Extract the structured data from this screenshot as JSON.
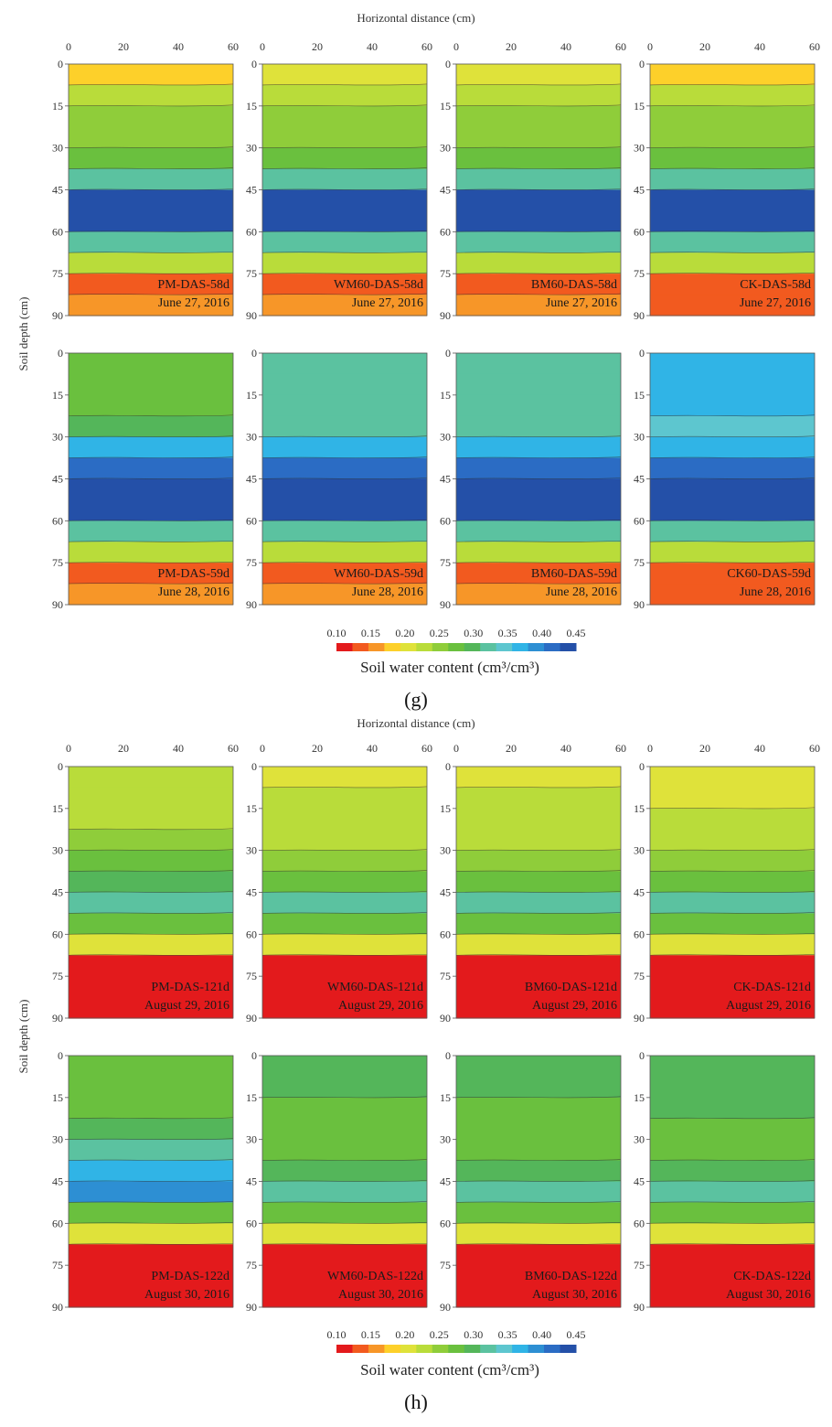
{
  "colors": {
    "scale": [
      "#e31a1c",
      "#f25a1f",
      "#f79628",
      "#fdd02a",
      "#dfe23a",
      "#b9dc3a",
      "#8fcd3a",
      "#6ac03e",
      "#54b65a",
      "#5bc2a0",
      "#5dc6cf",
      "#30b4e6",
      "#2d8fd3",
      "#2b6cc4",
      "#2450a8"
    ],
    "contour": "#2d2d2d"
  },
  "chart_data": [
    {
      "type": "heatmap",
      "id": "g",
      "subfigure_label": "(g)",
      "x_axis_title": "Horizontal distance (cm)",
      "y_axis_title": "Soil depth (cm)",
      "x_ticks": [
        "0",
        "20",
        "40",
        "60"
      ],
      "y_ticks": [
        "0",
        "15",
        "30",
        "45",
        "60",
        "75",
        "90"
      ],
      "xlim": [
        0,
        60
      ],
      "ylim": [
        0,
        90
      ],
      "panels": [
        {
          "label": "PM-DAS-58d",
          "date": "June 27, 2016",
          "profile": [
            0.19,
            0.23,
            0.25,
            0.26,
            0.27,
            0.32,
            0.43,
            0.44,
            0.33,
            0.23,
            0.13,
            0.15
          ]
        },
        {
          "label": "WM60-DAS-58d",
          "date": "June 27, 2016",
          "profile": [
            0.2,
            0.23,
            0.25,
            0.26,
            0.27,
            0.32,
            0.43,
            0.44,
            0.33,
            0.23,
            0.13,
            0.15
          ]
        },
        {
          "label": "BM60-DAS-58d",
          "date": "June 27, 2016",
          "profile": [
            0.2,
            0.23,
            0.25,
            0.26,
            0.27,
            0.32,
            0.43,
            0.44,
            0.33,
            0.23,
            0.13,
            0.15
          ]
        },
        {
          "label": "CK-DAS-58d",
          "date": "June 27, 2016",
          "profile": [
            0.19,
            0.23,
            0.25,
            0.26,
            0.27,
            0.32,
            0.43,
            0.44,
            0.33,
            0.23,
            0.13,
            0.14
          ]
        },
        {
          "label": "PM-DAS-59d",
          "date": "June 28, 2016",
          "profile": [
            0.28,
            0.28,
            0.28,
            0.3,
            0.36,
            0.41,
            0.44,
            0.45,
            0.32,
            0.22,
            0.14,
            0.15
          ]
        },
        {
          "label": "WM60-DAS-59d",
          "date": "June 28, 2016",
          "profile": [
            0.33,
            0.33,
            0.31,
            0.32,
            0.37,
            0.42,
            0.44,
            0.44,
            0.32,
            0.22,
            0.14,
            0.15
          ]
        },
        {
          "label": "BM60-DAS-59d",
          "date": "June 28, 2016",
          "profile": [
            0.33,
            0.32,
            0.31,
            0.32,
            0.37,
            0.42,
            0.44,
            0.44,
            0.32,
            0.22,
            0.14,
            0.15
          ]
        },
        {
          "label": "CK60-DAS-59d",
          "date": "June 28, 2016",
          "profile": [
            0.36,
            0.37,
            0.36,
            0.35,
            0.37,
            0.42,
            0.44,
            0.44,
            0.33,
            0.23,
            0.14,
            0.13
          ]
        }
      ],
      "colorbar": {
        "title": "Soil water content (cm³/cm³)",
        "ticks": [
          "0.10",
          "0.15",
          "0.20",
          "0.25",
          "0.30",
          "0.35",
          "0.40",
          "0.45"
        ],
        "range": [
          0.1,
          0.45
        ]
      }
    },
    {
      "type": "heatmap",
      "id": "h",
      "subfigure_label": "(h)",
      "x_axis_title": "Horizontal distance (cm)",
      "y_axis_title": "Soil depth (cm)",
      "x_ticks": [
        "0",
        "20",
        "40",
        "60"
      ],
      "y_ticks": [
        "0",
        "15",
        "30",
        "45",
        "60",
        "75",
        "90"
      ],
      "xlim": [
        0,
        60
      ],
      "ylim": [
        0,
        90
      ],
      "panels": [
        {
          "label": "PM-DAS-121d",
          "date": "August 29, 2016",
          "profile": [
            0.22,
            0.23,
            0.24,
            0.25,
            0.27,
            0.3,
            0.33,
            0.27,
            0.2,
            0.12,
            0.1,
            0.1
          ]
        },
        {
          "label": "WM60-DAS-121d",
          "date": "August 29, 2016",
          "profile": [
            0.21,
            0.22,
            0.23,
            0.24,
            0.25,
            0.27,
            0.31,
            0.27,
            0.2,
            0.12,
            0.1,
            0.1
          ]
        },
        {
          "label": "BM60-DAS-121d",
          "date": "August 29, 2016",
          "profile": [
            0.21,
            0.22,
            0.23,
            0.24,
            0.25,
            0.27,
            0.31,
            0.27,
            0.2,
            0.12,
            0.1,
            0.1
          ]
        },
        {
          "label": "CK-DAS-121d",
          "date": "August 29, 2016",
          "profile": [
            0.21,
            0.21,
            0.22,
            0.23,
            0.25,
            0.27,
            0.31,
            0.27,
            0.2,
            0.12,
            0.1,
            0.1
          ]
        },
        {
          "label": "PM-DAS-122d",
          "date": "August 30, 2016",
          "profile": [
            0.27,
            0.27,
            0.28,
            0.29,
            0.32,
            0.37,
            0.4,
            0.27,
            0.2,
            0.12,
            0.1,
            0.1
          ]
        },
        {
          "label": "WM60-DAS-122d",
          "date": "August 30, 2016",
          "profile": [
            0.3,
            0.29,
            0.28,
            0.27,
            0.28,
            0.29,
            0.31,
            0.27,
            0.2,
            0.12,
            0.1,
            0.1
          ]
        },
        {
          "label": "BM60-DAS-122d",
          "date": "August 30, 2016",
          "profile": [
            0.3,
            0.29,
            0.28,
            0.27,
            0.28,
            0.29,
            0.31,
            0.27,
            0.2,
            0.12,
            0.1,
            0.1
          ]
        },
        {
          "label": "CK-DAS-122d",
          "date": "August 30, 2016",
          "profile": [
            0.3,
            0.3,
            0.29,
            0.27,
            0.28,
            0.29,
            0.31,
            0.27,
            0.2,
            0.12,
            0.1,
            0.1
          ]
        }
      ],
      "colorbar": {
        "title": "Soil water content (cm³/cm³)",
        "ticks": [
          "0.10",
          "0.15",
          "0.20",
          "0.25",
          "0.30",
          "0.35",
          "0.40",
          "0.45"
        ],
        "range": [
          0.1,
          0.45
        ]
      }
    }
  ]
}
